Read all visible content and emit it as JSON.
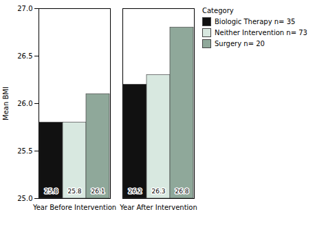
{
  "chart_data": {
    "type": "bar",
    "categories": [
      "Year Before Intervention",
      "Year After Intervention"
    ],
    "series": [
      {
        "name": "Biologic Therapy n= 35",
        "color": "#111111",
        "values": [
          25.8,
          26.2
        ]
      },
      {
        "name": "Neither Intervention n= 73",
        "color": "#d8e8e0",
        "values": [
          25.8,
          26.3
        ]
      },
      {
        "name": "Surgery n= 20",
        "color": "#8fa89a",
        "values": [
          26.1,
          26.8
        ]
      }
    ],
    "ylabel": "Mean BMI",
    "legend_title": "Category",
    "ylim": [
      25.0,
      27.0
    ],
    "yticks": [
      {
        "value": 25.0,
        "label": "25.0"
      },
      {
        "value": 25.5,
        "label": "25.5"
      },
      {
        "value": 26.0,
        "label": "26.0"
      },
      {
        "value": 26.5,
        "label": "26.5"
      },
      {
        "value": 27.0,
        "label": "27.0"
      }
    ],
    "data_labels": true,
    "legend": "right"
  }
}
